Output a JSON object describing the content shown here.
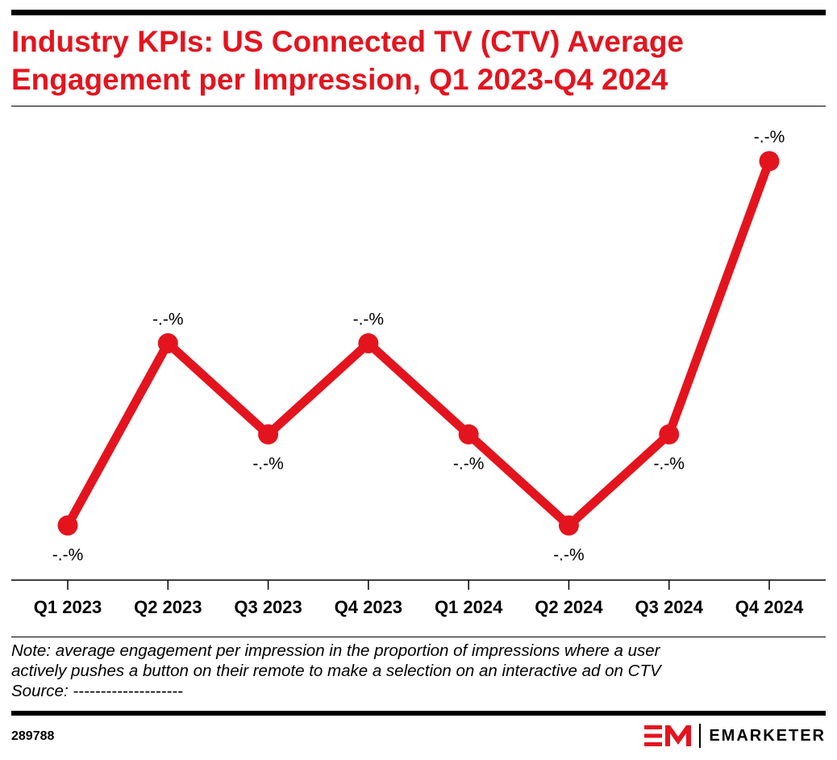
{
  "title": "Industry KPIs: US Connected TV (CTV) Average Engagement per Impression, Q1 2023-Q4 2024",
  "note_line1": "Note: average engagement per impression in the proportion of impressions where a user",
  "note_line2": "actively pushes a button on their remote to make a selection on an interactive ad on CTV",
  "source": "Source: --------------------",
  "chart_id": "289788",
  "brand": "EMARKETER",
  "colors": {
    "accent": "#e4141e",
    "text": "#000000"
  },
  "chart_data": {
    "type": "line",
    "categories": [
      "Q1 2023",
      "Q2 2023",
      "Q3 2023",
      "Q4 2023",
      "Q1 2024",
      "Q2 2024",
      "Q3 2024",
      "Q4 2024"
    ],
    "series": [
      {
        "values": [
          0.0,
          1.0,
          0.5,
          1.0,
          0.5,
          0.0,
          0.5,
          2.0
        ]
      }
    ],
    "labels": [
      "-.-%",
      "-.-%",
      "-.-%",
      "-.-%",
      "-.-%",
      "-.-%",
      "-.-%",
      "-.-%"
    ],
    "label_position": [
      "below",
      "above",
      "below",
      "above",
      "below",
      "below",
      "below",
      "above"
    ],
    "ylim": [
      -0.3,
      2.3
    ],
    "grid": false,
    "legend": "none",
    "xlabel": "",
    "ylabel": ""
  }
}
